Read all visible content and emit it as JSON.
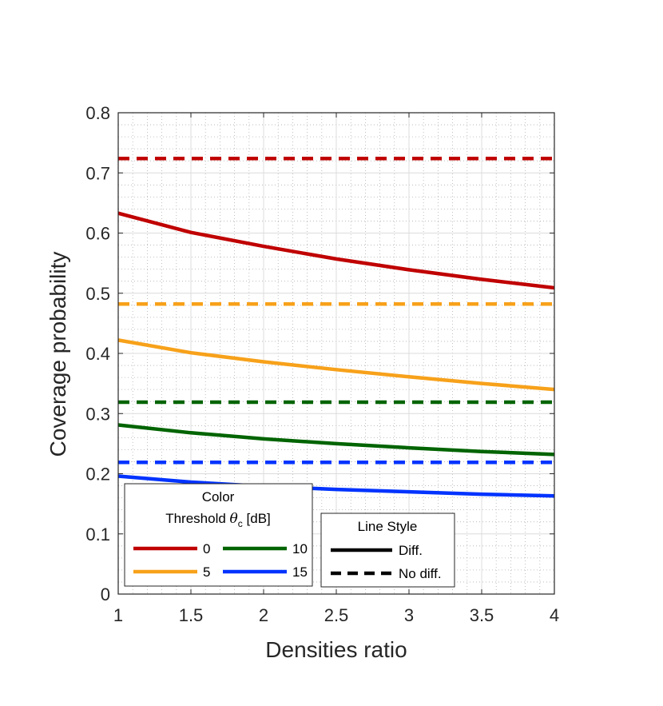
{
  "chart_data": {
    "type": "line",
    "title": "",
    "xlabel": "Densities ratio",
    "ylabel": "Coverage probability",
    "xlim": [
      1,
      4
    ],
    "ylim": [
      0,
      0.8
    ],
    "x_ticks": [
      1,
      1.5,
      2,
      2.5,
      3,
      3.5,
      4
    ],
    "x_tick_labels": [
      "1",
      "1.5",
      "2",
      "2.5",
      "3",
      "3.5",
      "4"
    ],
    "y_ticks": [
      0,
      0.1,
      0.2,
      0.3,
      0.4,
      0.5,
      0.6,
      0.7,
      0.8
    ],
    "y_tick_labels": [
      "0",
      "0.1",
      "0.2",
      "0.3",
      "0.4",
      "0.5",
      "0.6",
      "0.7",
      "0.8"
    ],
    "grid": true,
    "minor_grid": true,
    "x": [
      1,
      1.5,
      2,
      2.5,
      3,
      3.5,
      4
    ],
    "series": [
      {
        "name": "0 Diff.",
        "threshold_db": "0",
        "style": "Diff.",
        "color": "#c00000",
        "dashed": false,
        "values": [
          0.633,
          0.601,
          0.578,
          0.557,
          0.539,
          0.523,
          0.509
        ]
      },
      {
        "name": "0 No diff.",
        "threshold_db": "0",
        "style": "No diff.",
        "color": "#c00000",
        "dashed": true,
        "values": [
          0.724,
          0.724,
          0.724,
          0.724,
          0.724,
          0.724,
          0.724
        ]
      },
      {
        "name": "5 Diff.",
        "threshold_db": "5",
        "style": "Diff.",
        "color": "#f7a11a",
        "dashed": false,
        "values": [
          0.422,
          0.401,
          0.386,
          0.373,
          0.361,
          0.35,
          0.34
        ]
      },
      {
        "name": "5 No diff.",
        "threshold_db": "5",
        "style": "No diff.",
        "color": "#f7a11a",
        "dashed": true,
        "values": [
          0.482,
          0.482,
          0.482,
          0.482,
          0.482,
          0.482,
          0.482
        ]
      },
      {
        "name": "10 Diff.",
        "threshold_db": "10",
        "style": "Diff.",
        "color": "#006400",
        "dashed": false,
        "values": [
          0.281,
          0.268,
          0.258,
          0.25,
          0.243,
          0.237,
          0.232
        ]
      },
      {
        "name": "10 No diff.",
        "threshold_db": "10",
        "style": "No diff.",
        "color": "#006400",
        "dashed": true,
        "values": [
          0.319,
          0.319,
          0.319,
          0.319,
          0.319,
          0.319,
          0.319
        ]
      },
      {
        "name": "15 Diff.",
        "threshold_db": "15",
        "style": "Diff.",
        "color": "#0033ff",
        "dashed": false,
        "values": [
          0.196,
          0.186,
          0.179,
          0.174,
          0.17,
          0.166,
          0.163
        ]
      },
      {
        "name": "15 No diff.",
        "threshold_db": "15",
        "style": "No diff.",
        "color": "#0033ff",
        "dashed": true,
        "values": [
          0.219,
          0.219,
          0.219,
          0.219,
          0.219,
          0.219,
          0.219
        ]
      }
    ],
    "legend_color": {
      "title": "Color",
      "subtitle_prefix": "Threshold ",
      "subtitle_symbol": "θ",
      "subtitle_sub": "c",
      "subtitle_suffix": " [dB]",
      "entries": [
        {
          "label": "0",
          "color": "#c00000"
        },
        {
          "label": "10",
          "color": "#006400"
        },
        {
          "label": "5",
          "color": "#f7a11a"
        },
        {
          "label": "15",
          "color": "#0033ff"
        }
      ],
      "placement": "bottom-left"
    },
    "legend_style": {
      "title": "Line Style",
      "entries": [
        {
          "label": "Diff.",
          "dashed": false
        },
        {
          "label": "No diff.",
          "dashed": true
        }
      ],
      "placement": "bottom-center"
    }
  }
}
